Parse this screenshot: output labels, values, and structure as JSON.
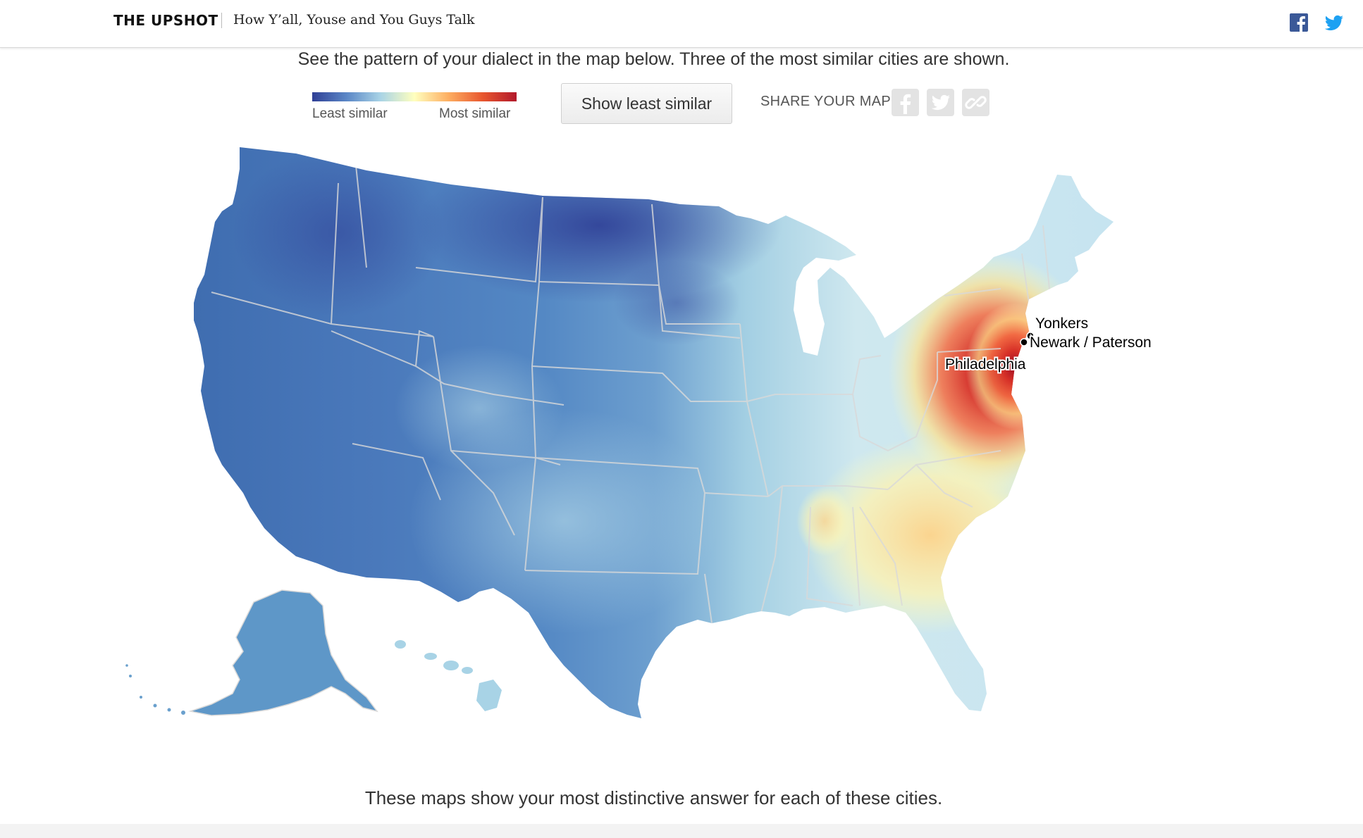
{
  "header": {
    "brand": "THE UPSHOT",
    "article_title": "How Y’all, Youse and You Guys Talk",
    "share_icons": [
      "facebook-icon",
      "twitter-icon"
    ]
  },
  "intro_text": "See the pattern of your dialect in the map below. Three of the most similar cities are shown.",
  "legend": {
    "low_label": "Least similar",
    "high_label": "Most similar",
    "colors": [
      "#2f3f96",
      "#5a86c6",
      "#a8d3e6",
      "#ffffbf",
      "#fdae61",
      "#e8572f",
      "#b2182b"
    ]
  },
  "toggle_button": "Show least similar",
  "share": {
    "label": "SHARE YOUR MAP:",
    "buttons": [
      "facebook-icon",
      "twitter-icon",
      "link-icon"
    ]
  },
  "map": {
    "cities": [
      {
        "name": "Yonkers"
      },
      {
        "name": "Newark / Paterson"
      },
      {
        "name": "Philadelphia"
      }
    ]
  },
  "footer_text": "These maps show your most distinctive answer for each of these cities."
}
